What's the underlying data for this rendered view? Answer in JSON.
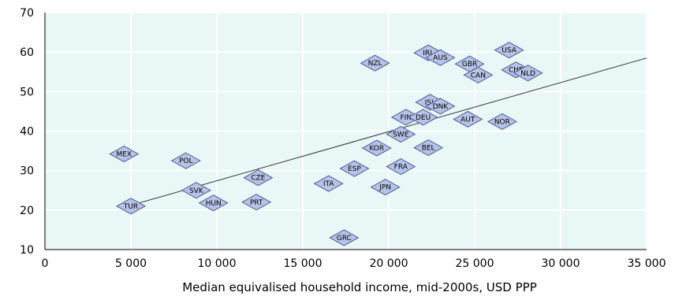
{
  "chart_data": {
    "type": "scatter",
    "xlabel": "Median equivalised household income, mid-2000s, USD PPP",
    "ylabel": "",
    "xlim": [
      0,
      35000
    ],
    "ylim": [
      10,
      70
    ],
    "x_ticks": [
      0,
      5000,
      10000,
      15000,
      20000,
      25000,
      30000,
      35000
    ],
    "x_tick_labels": [
      "0",
      "5 000",
      "10 000",
      "15 000",
      "20 000",
      "25 000",
      "30 000",
      "35 000"
    ],
    "y_ticks": [
      10,
      20,
      30,
      40,
      50,
      60,
      70
    ],
    "y_tick_labels": [
      "10",
      "20",
      "30",
      "40",
      "50",
      "60",
      "70"
    ],
    "grid": true,
    "plot_background": "#eaf7f7",
    "marker_fill": "#b7c3e6",
    "marker_stroke": "#4a5a9a",
    "trendline": {
      "from": [
        5000,
        21.2
      ],
      "to": [
        35000,
        58.5
      ]
    },
    "points": [
      {
        "label": "MEX",
        "x": 4600,
        "y": 34.2
      },
      {
        "label": "TUR",
        "x": 5000,
        "y": 21.0
      },
      {
        "label": "POL",
        "x": 8200,
        "y": 32.5
      },
      {
        "label": "SVK",
        "x": 8800,
        "y": 25.0
      },
      {
        "label": "HUN",
        "x": 9800,
        "y": 21.8
      },
      {
        "label": "CZE",
        "x": 12400,
        "y": 28.2
      },
      {
        "label": "PRT",
        "x": 12300,
        "y": 22.0
      },
      {
        "label": "ITA",
        "x": 16500,
        "y": 26.7
      },
      {
        "label": "GRC",
        "x": 17400,
        "y": 13.0
      },
      {
        "label": "ESP",
        "x": 18000,
        "y": 30.5
      },
      {
        "label": "NZL",
        "x": 19200,
        "y": 57.2
      },
      {
        "label": "KOR",
        "x": 19300,
        "y": 35.7
      },
      {
        "label": "JPN",
        "x": 19800,
        "y": 25.8
      },
      {
        "label": "SWE",
        "x": 20700,
        "y": 39.2
      },
      {
        "label": "FRA",
        "x": 20700,
        "y": 31.0
      },
      {
        "label": "FIN",
        "x": 21000,
        "y": 43.5
      },
      {
        "label": "DEU",
        "x": 22000,
        "y": 43.5
      },
      {
        "label": "BEL",
        "x": 22300,
        "y": 35.8
      },
      {
        "label": "ISL",
        "x": 22400,
        "y": 47.3
      },
      {
        "label": "DNK",
        "x": 23000,
        "y": 46.3
      },
      {
        "label": "IRL",
        "x": 22300,
        "y": 59.8
      },
      {
        "label": "AUS",
        "x": 23000,
        "y": 58.6
      },
      {
        "label": "GBR",
        "x": 24700,
        "y": 57.0
      },
      {
        "label": "CAN",
        "x": 25200,
        "y": 54.2
      },
      {
        "label": "AUT",
        "x": 24600,
        "y": 43.0
      },
      {
        "label": "NOR",
        "x": 26600,
        "y": 42.4
      },
      {
        "label": "USA",
        "x": 27000,
        "y": 60.5
      },
      {
        "label": "CHE",
        "x": 27400,
        "y": 55.5
      },
      {
        "label": "NLD",
        "x": 28100,
        "y": 54.7
      }
    ]
  }
}
